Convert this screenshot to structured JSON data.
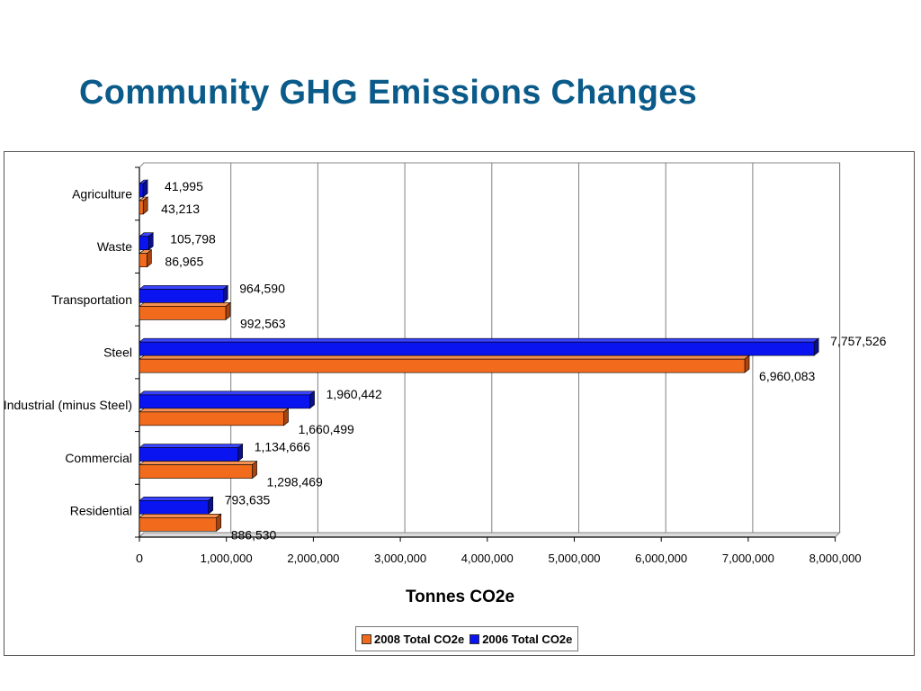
{
  "page": {
    "title": "Community GHG Emissions Changes"
  },
  "colors": {
    "title": "#0b5b8a",
    "series_2008": "#f26a1b",
    "series_2006": "#0a14f0",
    "grid": "#808080"
  },
  "chart_data": {
    "type": "bar",
    "orientation": "horizontal",
    "categories": [
      "Agriculture",
      "Waste",
      "Transportation",
      "Steel",
      "Industrial (minus Steel)",
      "Commercial",
      "Residential"
    ],
    "series": [
      {
        "name": "2006 Total CO2e",
        "values": [
          41995,
          105798,
          964590,
          7757526,
          1960442,
          1134666,
          793635
        ],
        "labels": [
          "41,995",
          "105,798",
          "964,590",
          "7,757,526",
          "1,960,442",
          "1,134,666",
          "793,635"
        ]
      },
      {
        "name": "2008 Total CO2e",
        "values": [
          43213,
          86965,
          992563,
          6960083,
          1660499,
          1298469,
          886530
        ],
        "labels": [
          "43,213",
          "86,965",
          "992,563",
          "6,960,083",
          "1,660,499",
          "1,298,469",
          "886,530"
        ]
      }
    ],
    "xlabel": "Tonnes CO2e",
    "ylabel": "",
    "xlim": [
      0,
      8000000
    ],
    "ticks": [
      "0",
      "1,000,000",
      "2,000,000",
      "3,000,000",
      "4,000,000",
      "5,000,000",
      "6,000,000",
      "7,000,000",
      "8,000,000"
    ],
    "grid": true,
    "legend": {
      "position": "bottom",
      "entries": [
        "2008 Total CO2e",
        "2006 Total CO2e"
      ]
    }
  }
}
